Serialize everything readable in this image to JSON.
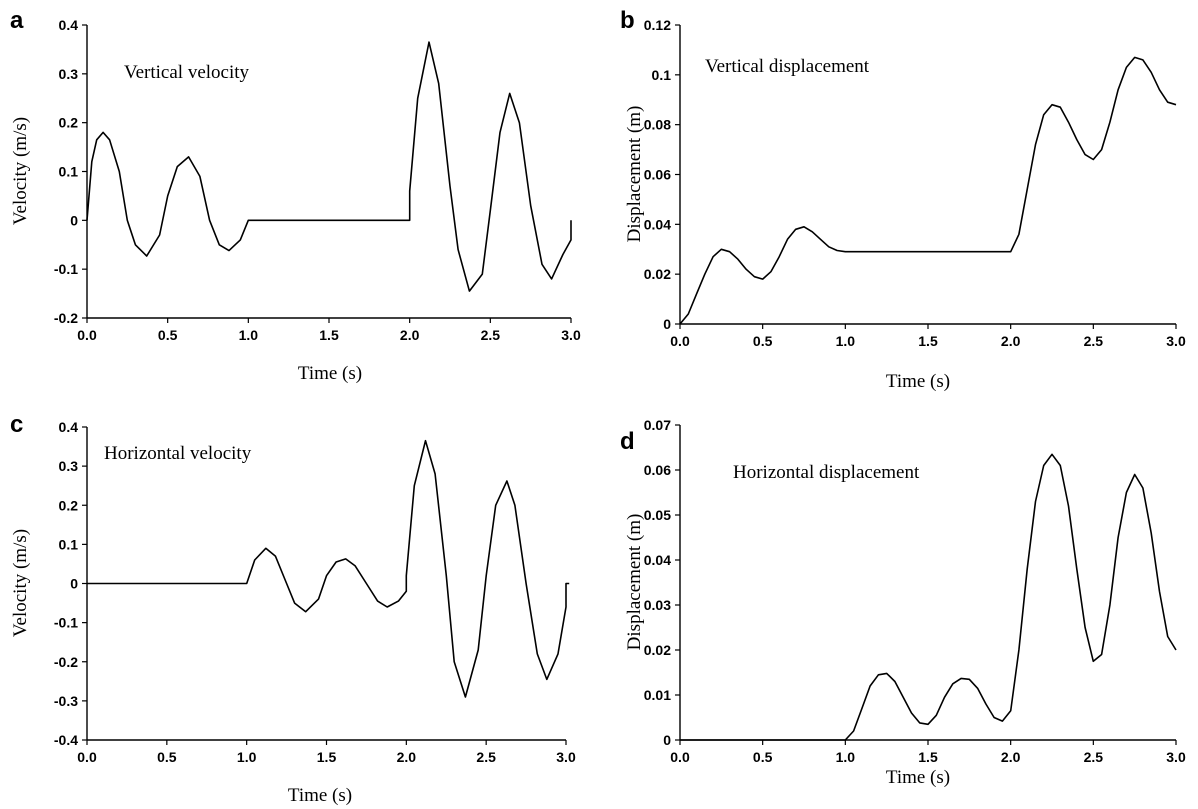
{
  "chart_data": [
    {
      "panel": "a",
      "type": "line",
      "title": "Vertical velocity",
      "xlabel": "Time (s)",
      "ylabel": "Velocity (m/s)",
      "xlim": [
        0,
        3
      ],
      "ylim": [
        -0.2,
        0.4
      ],
      "xticks": [
        "0.0",
        "0.5",
        "1.0",
        "1.5",
        "2.0",
        "2.5",
        "3.0"
      ],
      "yticks": [
        "-0.2",
        "-0.1",
        "0",
        "0.1",
        "0.2",
        "0.3",
        "0.4"
      ],
      "series": [
        {
          "x": [
            0.0,
            0.03,
            0.06,
            0.1,
            0.14,
            0.2,
            0.25,
            0.3,
            0.37,
            0.45,
            0.5,
            0.56,
            0.63,
            0.7,
            0.76,
            0.82,
            0.88,
            0.95,
            1.0,
            1.5,
            2.0,
            2.0,
            2.05,
            2.12,
            2.18,
            2.25,
            2.3,
            2.37,
            2.45,
            2.5,
            2.56,
            2.62,
            2.68,
            2.75,
            2.82,
            2.88,
            2.95,
            3.0,
            3.0
          ],
          "y": [
            0,
            0.12,
            0.165,
            0.18,
            0.165,
            0.1,
            0.0,
            -0.05,
            -0.073,
            -0.03,
            0.05,
            0.11,
            0.13,
            0.09,
            0.0,
            -0.05,
            -0.062,
            -0.04,
            0,
            0,
            0,
            0.06,
            0.25,
            0.365,
            0.28,
            0.07,
            -0.06,
            -0.145,
            -0.11,
            0.02,
            0.18,
            0.26,
            0.2,
            0.03,
            -0.09,
            -0.12,
            -0.07,
            -0.04,
            0
          ]
        }
      ]
    },
    {
      "panel": "b",
      "type": "line",
      "title": "Vertical displacement",
      "xlabel": "Time (s)",
      "ylabel": "Displacement (m)",
      "xlim": [
        0,
        3
      ],
      "ylim": [
        0,
        0.12
      ],
      "xticks": [
        "0.0",
        "0.5",
        "1.0",
        "1.5",
        "2.0",
        "2.5",
        "3.0"
      ],
      "yticks": [
        "0",
        "0.02",
        "0.04",
        "0.06",
        "0.08",
        "0.1",
        "0.12"
      ],
      "series": [
        {
          "x": [
            0.0,
            0.05,
            0.1,
            0.15,
            0.2,
            0.25,
            0.3,
            0.35,
            0.4,
            0.45,
            0.5,
            0.55,
            0.6,
            0.65,
            0.7,
            0.75,
            0.8,
            0.85,
            0.9,
            0.95,
            1.0,
            1.5,
            2.0,
            2.05,
            2.1,
            2.15,
            2.2,
            2.25,
            2.3,
            2.35,
            2.4,
            2.45,
            2.5,
            2.55,
            2.6,
            2.65,
            2.7,
            2.75,
            2.8,
            2.85,
            2.9,
            2.95,
            3.0
          ],
          "y": [
            0,
            0.004,
            0.012,
            0.02,
            0.027,
            0.03,
            0.029,
            0.026,
            0.022,
            0.019,
            0.018,
            0.021,
            0.027,
            0.034,
            0.038,
            0.039,
            0.037,
            0.034,
            0.031,
            0.0295,
            0.029,
            0.029,
            0.029,
            0.036,
            0.054,
            0.072,
            0.084,
            0.088,
            0.087,
            0.081,
            0.074,
            0.068,
            0.066,
            0.07,
            0.081,
            0.094,
            0.103,
            0.107,
            0.106,
            0.101,
            0.094,
            0.089,
            0.088
          ]
        }
      ]
    },
    {
      "panel": "c",
      "type": "line",
      "title": "Horizontal velocity",
      "xlabel": "Time (s)",
      "ylabel": "Velocity (m/s)",
      "xlim": [
        0,
        3
      ],
      "ylim": [
        -0.4,
        0.4
      ],
      "xticks": [
        "0.0",
        "0.5",
        "1.0",
        "1.5",
        "2.0",
        "2.5",
        "3.0"
      ],
      "yticks": [
        "-0.4",
        "-0.3",
        "-0.2",
        "-0.1",
        "0",
        "0.1",
        "0.2",
        "0.3",
        "0.4"
      ],
      "series": [
        {
          "x": [
            0.0,
            0.5,
            1.0,
            1.05,
            1.12,
            1.18,
            1.25,
            1.3,
            1.37,
            1.45,
            1.5,
            1.56,
            1.62,
            1.68,
            1.75,
            1.82,
            1.88,
            1.95,
            2.0,
            2.0,
            2.05,
            2.12,
            2.18,
            2.25,
            2.3,
            2.37,
            2.45,
            2.5,
            2.56,
            2.63,
            2.68,
            2.75,
            2.82,
            2.88,
            2.95,
            3.0,
            3.0,
            3.02
          ],
          "y": [
            0,
            0,
            0,
            0.06,
            0.09,
            0.07,
            0.0,
            -0.05,
            -0.072,
            -0.04,
            0.02,
            0.055,
            0.063,
            0.045,
            0.0,
            -0.045,
            -0.06,
            -0.045,
            -0.02,
            0.02,
            0.25,
            0.365,
            0.28,
            0.02,
            -0.2,
            -0.29,
            -0.17,
            0.02,
            0.2,
            0.262,
            0.2,
            0.0,
            -0.18,
            -0.245,
            -0.18,
            -0.06,
            0,
            0
          ]
        }
      ]
    },
    {
      "panel": "d",
      "type": "line",
      "title": "Horizontal displacement",
      "xlabel": "Time (s)",
      "ylabel": "Displacement (m)",
      "xlim": [
        0,
        3
      ],
      "ylim": [
        0,
        0.07
      ],
      "xticks": [
        "0.0",
        "0.5",
        "1.0",
        "1.5",
        "2.0",
        "2.5",
        "3.0"
      ],
      "yticks": [
        "0",
        "0.01",
        "0.02",
        "0.03",
        "0.04",
        "0.05",
        "0.06",
        "0.07"
      ],
      "series": [
        {
          "x": [
            0.0,
            0.5,
            1.0,
            1.05,
            1.1,
            1.15,
            1.2,
            1.25,
            1.3,
            1.35,
            1.4,
            1.45,
            1.5,
            1.55,
            1.6,
            1.65,
            1.7,
            1.75,
            1.8,
            1.85,
            1.9,
            1.95,
            2.0,
            2.05,
            2.1,
            2.15,
            2.2,
            2.25,
            2.3,
            2.35,
            2.4,
            2.45,
            2.5,
            2.55,
            2.6,
            2.65,
            2.7,
            2.75,
            2.8,
            2.85,
            2.9,
            2.95,
            3.0
          ],
          "y": [
            0,
            0,
            0,
            0.002,
            0.007,
            0.012,
            0.0145,
            0.0148,
            0.013,
            0.0095,
            0.006,
            0.0038,
            0.0035,
            0.0055,
            0.0095,
            0.0125,
            0.0137,
            0.0135,
            0.0115,
            0.008,
            0.005,
            0.0042,
            0.0065,
            0.02,
            0.038,
            0.053,
            0.061,
            0.0635,
            0.061,
            0.052,
            0.038,
            0.025,
            0.0175,
            0.019,
            0.03,
            0.045,
            0.055,
            0.059,
            0.056,
            0.046,
            0.033,
            0.023,
            0.02
          ]
        }
      ]
    }
  ]
}
